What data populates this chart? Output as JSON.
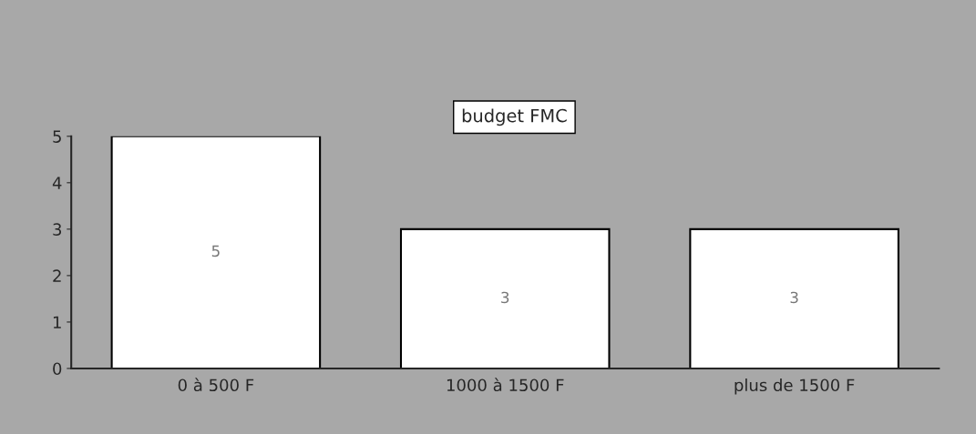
{
  "chart_data": {
    "type": "bar",
    "title": "budget FMC",
    "categories": [
      "0 à 500 F",
      "1000 à 1500 F",
      "plus de 1500 F"
    ],
    "values": [
      5,
      3,
      3
    ],
    "color": "#ffffff",
    "ylim": [
      0,
      5
    ],
    "yticks": [
      0,
      1,
      2,
      3,
      4,
      5
    ],
    "grid": false,
    "legend": false,
    "data_labels": true
  }
}
